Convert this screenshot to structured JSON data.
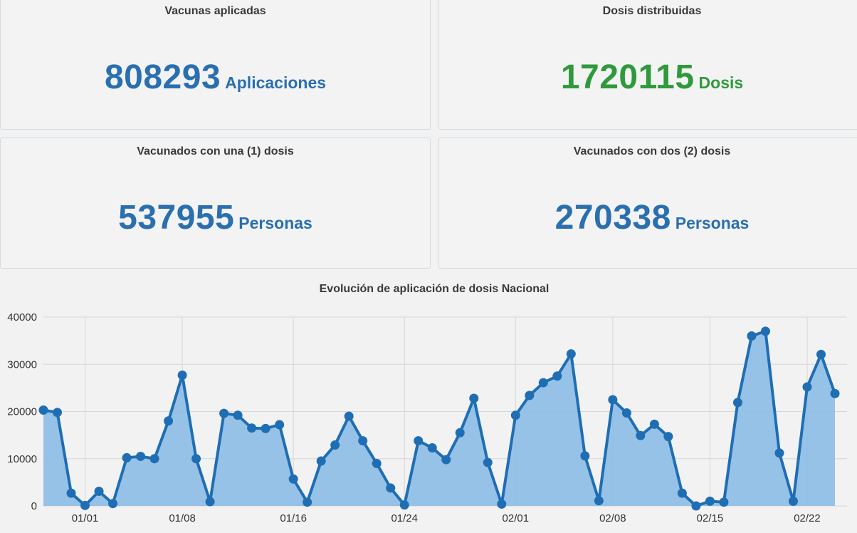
{
  "cards": {
    "aplicadas": {
      "title": "Vacunas aplicadas",
      "value": "808293",
      "unit": "Aplicaciones",
      "color": "#2a6fb0"
    },
    "distribuidas": {
      "title": "Dosis distribuidas",
      "value": "1720115",
      "unit": "Dosis",
      "color": "#2f9a3c"
    },
    "una_dosis": {
      "title": "Vacunados con una (1) dosis",
      "value": "537955",
      "unit": "Personas",
      "color": "#2a6fb0"
    },
    "dos_dosis": {
      "title": "Vacunados con dos (2) dosis",
      "value": "270338",
      "unit": "Personas",
      "color": "#2a6fb0"
    }
  },
  "chart_data": {
    "type": "area",
    "title": "Evolución de aplicación de dosis Nacional",
    "xlabel": "",
    "ylabel": "",
    "ylim": [
      0,
      40000
    ],
    "yticks": [
      0,
      10000,
      20000,
      30000,
      40000
    ],
    "x_start": "2020-12-29",
    "xticks": [
      {
        "label": "01/01",
        "index": 3
      },
      {
        "label": "01/08",
        "index": 10
      },
      {
        "label": "01/16",
        "index": 18
      },
      {
        "label": "01/24",
        "index": 26
      },
      {
        "label": "02/01",
        "index": 34
      },
      {
        "label": "02/08",
        "index": 41
      },
      {
        "label": "02/15",
        "index": 48
      },
      {
        "label": "02/22",
        "index": 55
      }
    ],
    "values": [
      20300,
      19800,
      2700,
      100,
      3100,
      500,
      10200,
      10500,
      10000,
      18000,
      27700,
      10000,
      900,
      19600,
      19200,
      16500,
      16400,
      17200,
      5700,
      800,
      9500,
      12900,
      19000,
      13800,
      9000,
      3800,
      200,
      13800,
      12300,
      9800,
      15500,
      22800,
      9200,
      400,
      19200,
      23400,
      26100,
      27500,
      32200,
      10600,
      1100,
      22500,
      19700,
      14900,
      17300,
      14700,
      2700,
      0,
      1000,
      800,
      21900,
      36000,
      37000,
      11200,
      1000,
      25200,
      32100,
      23800
    ],
    "grid": true,
    "colors": {
      "line": "#1f6eb4",
      "fill": "#8cbde6",
      "grid": "#d6d6d6"
    }
  }
}
